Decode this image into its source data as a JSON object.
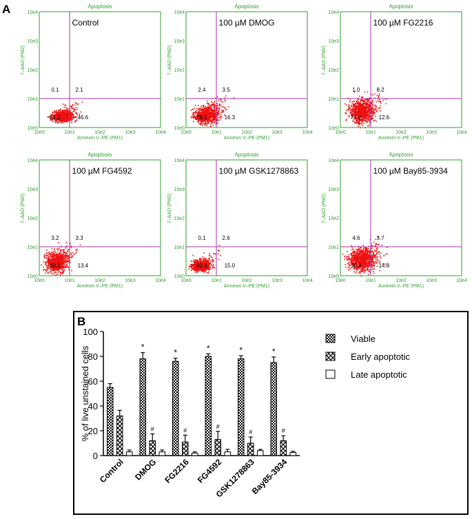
{
  "panel_a": {
    "label": "A",
    "common": {
      "title": "Apoptosis",
      "xlabel": "Annexin V–PE (PM1)",
      "ylabel": "7–AAD (PM2)",
      "tick_labels": [
        "10e0",
        "10e1",
        "10e2",
        "10e3",
        "10e4"
      ],
      "colors": {
        "dots": "#ee1111",
        "gate": "#aa33aa",
        "axis_text": "#2e9e2e"
      }
    },
    "plots": [
      {
        "name": "Control",
        "label": "Control",
        "quadrants": {
          "upper_left": "0.1",
          "upper_right": "2.1",
          "lower_left": "51.2",
          "lower_right": "46.6"
        }
      },
      {
        "name": "DMOG",
        "label": "100 µM DMOG",
        "quadrants": {
          "upper_left": "2.4",
          "upper_right": "3.5",
          "lower_left": "78.1",
          "lower_right": "16.3"
        }
      },
      {
        "name": "FG2216",
        "label": "100 µM FG2216",
        "quadrants": {
          "upper_left": "1.0",
          "upper_right": "8.2",
          "lower_left": "77.2",
          "lower_right": "12.6"
        }
      },
      {
        "name": "FG4592",
        "label": "100 µM FG4592",
        "quadrants": {
          "upper_left": "3.2",
          "upper_right": "3.3",
          "lower_left": "80.1",
          "lower_right": "13.4"
        }
      },
      {
        "name": "GSK1278863",
        "label": "100 µM GSK1278863",
        "quadrants": {
          "upper_left": "0.1",
          "upper_right": "2.6",
          "lower_left": "82.3",
          "lower_right": "15.0"
        }
      },
      {
        "name": "Bay85-3934",
        "label": "100 µM Bay85-3934",
        "quadrants": {
          "upper_left": "4.6",
          "upper_right": "3.7",
          "lower_left": "76.9",
          "lower_right": "14.8"
        }
      }
    ]
  },
  "panel_b": {
    "label": "B"
  },
  "chart_data": {
    "type": "bar",
    "ylabel": "% of live unstained cells",
    "xlabel": "",
    "ylim": [
      0,
      100
    ],
    "yticks": [
      "0",
      "20",
      "40",
      "60",
      "80",
      "100"
    ],
    "categories": [
      "Control",
      "DMOG",
      "FG2216",
      "FG4592",
      "GSK1278863",
      "Bay85-3934"
    ],
    "series": [
      {
        "name": "Viable",
        "values": [
          55,
          78,
          76,
          80,
          78,
          75
        ],
        "errors": [
          3,
          5,
          2.5,
          2,
          2.5,
          4.5
        ]
      },
      {
        "name": "Early apoptotic",
        "values": [
          32,
          12,
          11,
          13,
          10,
          12
        ],
        "errors": [
          4.5,
          5.5,
          5.5,
          6.5,
          5,
          4
        ]
      },
      {
        "name": "Late apoptotic",
        "values": [
          3,
          3,
          2,
          3,
          4,
          2.5
        ],
        "errors": [
          1.5,
          1.5,
          1,
          2,
          1,
          1
        ]
      }
    ],
    "significance": {
      "Viable": [
        "",
        "*",
        "*",
        "*",
        "*",
        "*"
      ],
      "Early apoptotic": [
        "",
        "#",
        "#",
        "#",
        "#",
        "#"
      ]
    },
    "legend_position": "right"
  }
}
